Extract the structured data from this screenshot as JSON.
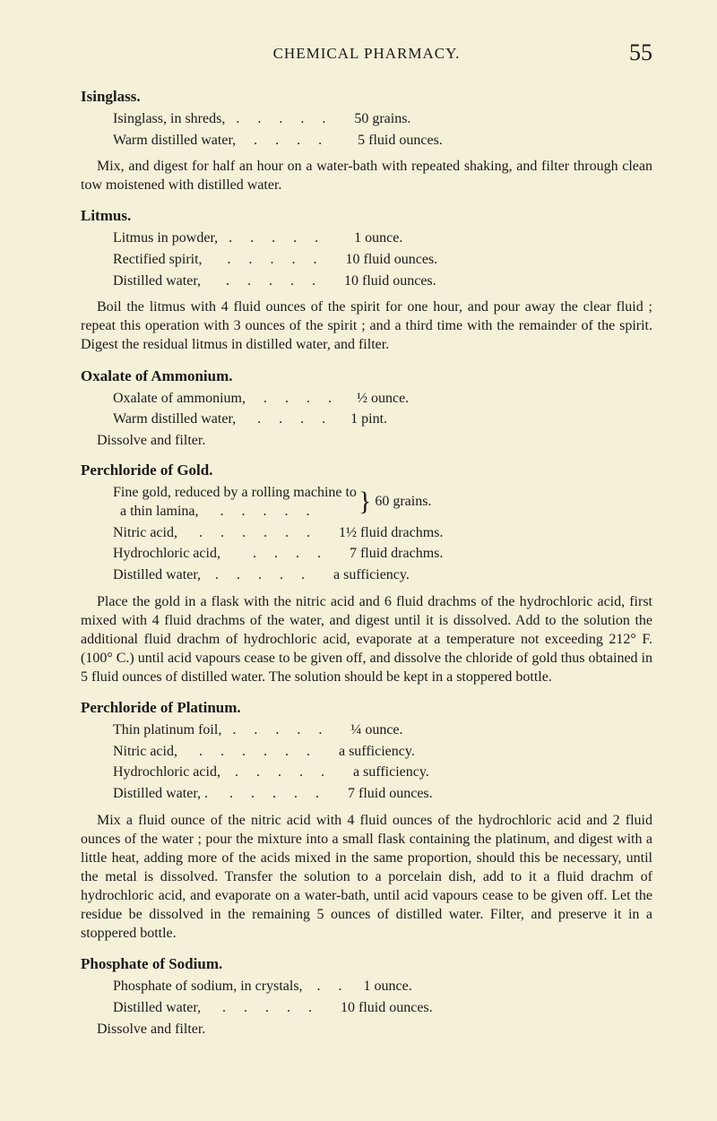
{
  "header": {
    "chapter_title": "CHEMICAL PHARMACY.",
    "page_number": "55"
  },
  "recipes": {
    "isinglass": {
      "title": "Isinglass.",
      "ingredients": [
        {
          "name": "Isinglass, in shreds,",
          "dots": "   .     .     .     .     .        ",
          "amount": "50 grains."
        },
        {
          "name": "Warm distilled water,",
          "dots": "     .     .     .     .          ",
          "amount": "5 fluid ounces."
        }
      ],
      "body": "Mix, and digest for half an hour on a water-bath with repeated shaking, and filter through clean tow moistened with distilled water."
    },
    "litmus": {
      "title": "Litmus.",
      "ingredients": [
        {
          "name": "Litmus in powder,",
          "dots": "   .     .     .     .     .          ",
          "amount": "1 ounce."
        },
        {
          "name": "Rectified spirit,",
          "dots": "       .     .     .     .     .        ",
          "amount": "10 fluid ounces."
        },
        {
          "name": "Distilled water,",
          "dots": "       .     .     .     .     .        ",
          "amount": "10 fluid ounces."
        }
      ],
      "body": "Boil the litmus with 4 fluid ounces of the spirit for one hour, and pour away the clear fluid ; repeat this operation with 3 ounces of the spirit ; and a third time with the remainder of the spirit. Digest the residual litmus in distilled water, and filter."
    },
    "oxalate": {
      "title": "Oxalate of Ammonium.",
      "ingredients": [
        {
          "name": "Oxalate of ammonium,",
          "dots": "     .     .     .     .       ",
          "amount": "½ ounce."
        },
        {
          "name": "Warm distilled water,",
          "dots": "      .     .     .     .       ",
          "amount": "1 pint."
        }
      ],
      "sub": "Dissolve and filter."
    },
    "perchloride_gold": {
      "title": "Perchloride of Gold.",
      "brace": {
        "line1": "Fine gold, reduced by a rolling machine to",
        "line2": "  a thin lamina,      .     .     .     .     .",
        "amount": "60 grains."
      },
      "ingredients": [
        {
          "name": "Nitric acid,",
          "dots": "      .     .     .     .     .     .        ",
          "amount": "1½ fluid drachms."
        },
        {
          "name": "Hydrochloric acid,",
          "dots": "         .     .     .     .        ",
          "amount": "7 fluid drachms."
        },
        {
          "name": "Distilled water,",
          "dots": "    .     .     .     .     .        ",
          "amount": "a sufficiency."
        }
      ],
      "body": "Place the gold in a flask with the nitric acid and 6 fluid drachms of the hydrochloric acid, first mixed with 4 fluid drachms of the water, and digest until it is dissolved. Add to the solution the additional fluid drachm of hydrochloric acid, evaporate at a temperature not exceeding 212° F. (100° C.) until acid vapours cease to be given off, and dissolve the chloride of gold thus obtained in 5 fluid ounces of distilled water. The solution should be kept in a stoppered bottle."
    },
    "perchloride_platinum": {
      "title": "Perchloride of Platinum.",
      "ingredients": [
        {
          "name": "Thin platinum foil,",
          "dots": "   .     .     .     .     .        ",
          "amount": "¼ ounce."
        },
        {
          "name": "Nitric acid,",
          "dots": "      .     .     .     .     .     .        ",
          "amount": "a sufficiency."
        },
        {
          "name": "Hydrochloric acid,",
          "dots": "    .     .     .     .     .        ",
          "amount": "a sufficiency."
        },
        {
          "name": "Distilled water, .",
          "dots": "      .     .     .     .     .        ",
          "amount": "7 fluid ounces."
        }
      ],
      "body": "Mix a fluid ounce of the nitric acid with 4 fluid ounces of the hydrochloric acid and 2 fluid ounces of the water ; pour the mixture into a small flask containing the platinum, and digest with a little heat, adding more of the acids mixed in the same proportion, should this be necessary, until the metal is dissolved. Transfer the solution to a porcelain dish, add to it a fluid drachm of hydrochloric acid, and evaporate on a water-bath, until acid vapours cease to be given off. Let the residue be dissolved in the remaining 5 ounces of distilled water. Filter, and preserve it in a stoppered bottle."
    },
    "phosphate_sodium": {
      "title": "Phosphate of Sodium.",
      "ingredients": [
        {
          "name": "Phosphate of sodium, in crystals,",
          "dots": "    .     .      ",
          "amount": "1 ounce."
        },
        {
          "name": "Distilled water,",
          "dots": "      .     .     .     .     .        ",
          "amount": "10 fluid ounces."
        }
      ],
      "sub": "Dissolve and filter."
    }
  }
}
